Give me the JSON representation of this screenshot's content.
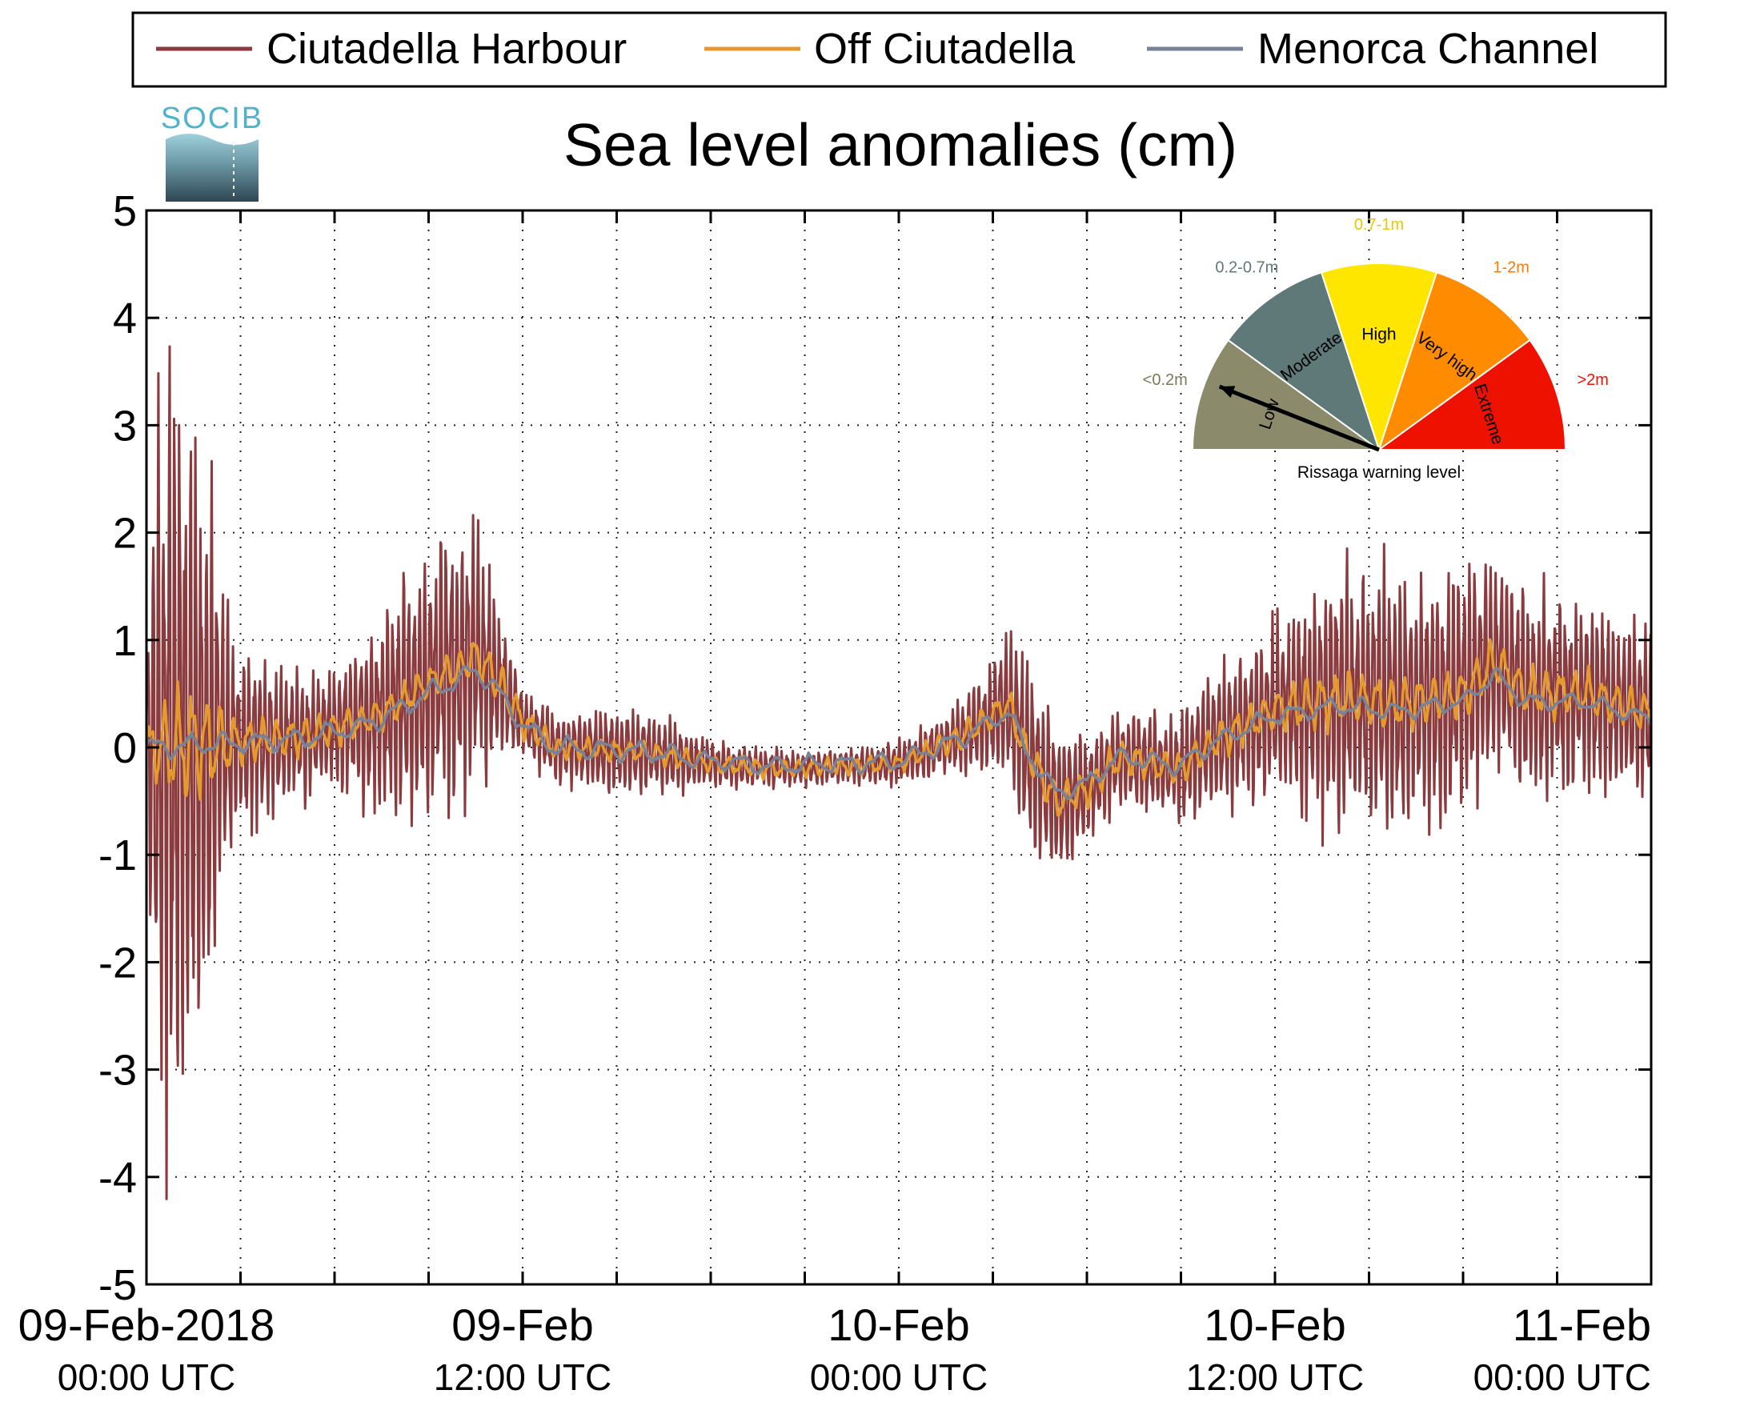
{
  "chart_data": {
    "type": "line",
    "title": "Sea level anomalies (cm)",
    "xlabel": "",
    "ylabel": "",
    "ylim": [
      -5,
      5
    ],
    "yticks": [
      "5",
      "4",
      "3",
      "2",
      "1",
      "0",
      "-1",
      "-2",
      "-3",
      "-4",
      "-5"
    ],
    "xlim_hours": [
      0,
      48
    ],
    "xticks": [
      {
        "date": "09-Feb-2018",
        "time": "00:00 UTC"
      },
      {
        "date": "09-Feb",
        "time": "12:00 UTC"
      },
      {
        "date": "10-Feb",
        "time": "00:00 UTC"
      },
      {
        "date": "10-Feb",
        "time": "12:00 UTC"
      },
      {
        "date": "11-Feb",
        "time": "00:00 UTC"
      }
    ],
    "grid": true,
    "legend_position": "top",
    "series": [
      {
        "name": "Ciutadella Harbour",
        "color": "#8b3a3e",
        "amplitude": [
          [
            0,
            1.5
          ],
          [
            0.5,
            3.8
          ],
          [
            1,
            3.4
          ],
          [
            2,
            2.4
          ],
          [
            2.5,
            1.2
          ],
          [
            3,
            0.8
          ],
          [
            4.5,
            0.6
          ],
          [
            6,
            0.5
          ],
          [
            8,
            1.0
          ],
          [
            9,
            1.2
          ],
          [
            10,
            1.3
          ],
          [
            11,
            0.9
          ],
          [
            12,
            0.3
          ],
          [
            14,
            0.35
          ],
          [
            16,
            0.4
          ],
          [
            18,
            0.2
          ],
          [
            22,
            0.15
          ],
          [
            24,
            0.2
          ],
          [
            26,
            0.3
          ],
          [
            27,
            0.5
          ],
          [
            28,
            0.9
          ],
          [
            29,
            0.7
          ],
          [
            30,
            0.5
          ],
          [
            31,
            0.4
          ],
          [
            33,
            0.5
          ],
          [
            36,
            0.8
          ],
          [
            38,
            1.2
          ],
          [
            40,
            1.2
          ],
          [
            43,
            1.0
          ],
          [
            46,
            0.9
          ],
          [
            48,
            0.8
          ]
        ],
        "period_hours": 0.17
      },
      {
        "name": "Off Ciutadella",
        "color": "#e49a2e",
        "amplitude": [
          [
            0,
            0.25
          ],
          [
            1,
            0.5
          ],
          [
            2,
            0.5
          ],
          [
            3,
            0.2
          ],
          [
            8,
            0.15
          ],
          [
            11,
            0.2
          ],
          [
            13,
            0.1
          ],
          [
            24,
            0.08
          ],
          [
            27,
            0.15
          ],
          [
            29,
            0.2
          ],
          [
            30,
            0.15
          ],
          [
            33,
            0.15
          ],
          [
            38,
            0.25
          ],
          [
            48,
            0.2
          ]
        ],
        "period_hours": 0.45
      },
      {
        "name": "Menorca Channel",
        "color": "#7a8298",
        "amplitude": [
          [
            0,
            0.1
          ],
          [
            48,
            0.08
          ]
        ],
        "period_hours": 1.1
      }
    ],
    "baseline": [
      [
        0,
        0
      ],
      [
        3,
        0.05
      ],
      [
        5,
        0.1
      ],
      [
        7,
        0.25
      ],
      [
        8,
        0.4
      ],
      [
        9,
        0.6
      ],
      [
        10,
        0.75
      ],
      [
        10.5,
        0.85
      ],
      [
        11,
        0.7
      ],
      [
        12,
        0.25
      ],
      [
        13,
        0.0
      ],
      [
        16,
        -0.05
      ],
      [
        18,
        -0.15
      ],
      [
        20,
        -0.2
      ],
      [
        22,
        -0.18
      ],
      [
        24,
        -0.15
      ],
      [
        26,
        0.1
      ],
      [
        27,
        0.3
      ],
      [
        27.5,
        0.4
      ],
      [
        28,
        0.0
      ],
      [
        29,
        -0.5
      ],
      [
        30,
        -0.4
      ],
      [
        31,
        -0.1
      ],
      [
        32,
        -0.15
      ],
      [
        33,
        -0.2
      ],
      [
        34,
        0.05
      ],
      [
        36,
        0.35
      ],
      [
        38,
        0.45
      ],
      [
        40,
        0.4
      ],
      [
        42,
        0.5
      ],
      [
        43,
        0.8
      ],
      [
        44,
        0.5
      ],
      [
        46,
        0.5
      ],
      [
        48,
        0.3
      ]
    ],
    "rissaga_gauge": {
      "label": "Rissaga warning level",
      "needle_level": "Low",
      "sectors": [
        {
          "name": "Low",
          "range": "<0.2m",
          "color": "#8b8b6b",
          "range_color": "#7a7a5a"
        },
        {
          "name": "Moderate",
          "range": "0.2-0.7m",
          "color": "#5f7878",
          "range_color": "#5f7878"
        },
        {
          "name": "High",
          "range": "0.7-1m",
          "color": "#ffe600",
          "range_color": "#e8c800"
        },
        {
          "name": "Very high",
          "range": "1-2m",
          "color": "#ff8c00",
          "range_color": "#ff7a00"
        },
        {
          "name": "Extreme",
          "range": ">2m",
          "color": "#ee1100",
          "range_color": "#ee1100"
        }
      ]
    },
    "logo_text": "SOCIB"
  }
}
